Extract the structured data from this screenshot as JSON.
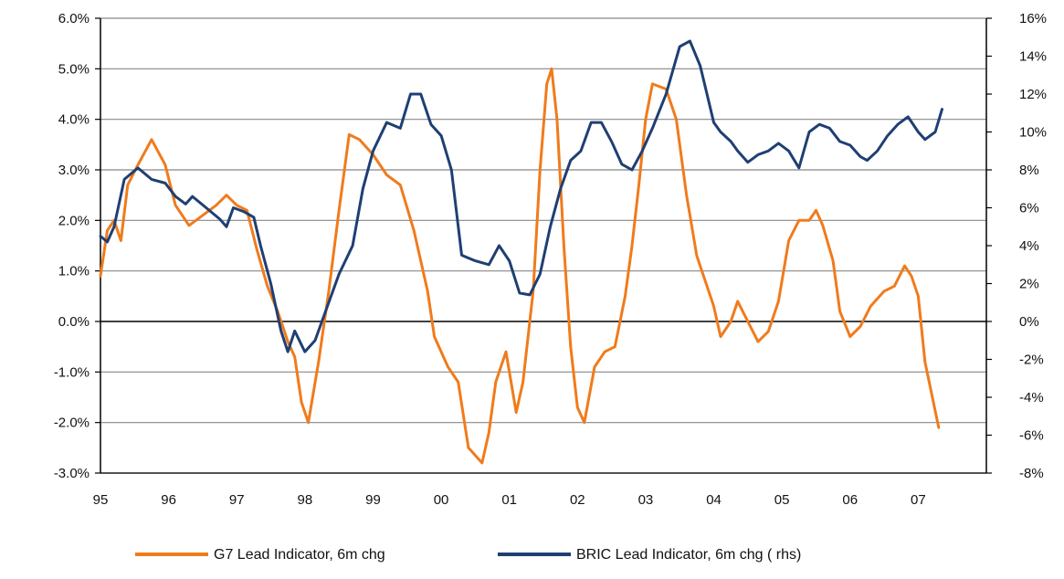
{
  "chart_data": {
    "type": "line",
    "title": "",
    "xlabel": "",
    "ylabel": "",
    "x_tick_labels": [
      "95",
      "96",
      "97",
      "98",
      "99",
      "00",
      "01",
      "02",
      "03",
      "04",
      "05",
      "06",
      "07"
    ],
    "x_tick_values": [
      1995,
      1996,
      1997,
      1998,
      1999,
      2000,
      2001,
      2002,
      2003,
      2004,
      2005,
      2006,
      2007
    ],
    "xlim": [
      1995,
      2008
    ],
    "y_left": {
      "range": [
        -3.0,
        6.0
      ],
      "ticks": [
        6.0,
        5.0,
        4.0,
        3.0,
        2.0,
        1.0,
        0.0,
        -1.0,
        -2.0,
        -3.0
      ],
      "tick_labels": [
        "6.0%",
        "5.0%",
        "4.0%",
        "3.0%",
        "2.0%",
        "1.0%",
        "0.0%",
        "-1.0%",
        "-2.0%",
        "-3.0%"
      ]
    },
    "y_right": {
      "range": [
        -8,
        16
      ],
      "ticks": [
        16,
        14,
        12,
        10,
        8,
        6,
        4,
        2,
        0,
        -2,
        -4,
        -6,
        -8
      ],
      "tick_labels": [
        "16%",
        "14%",
        "12%",
        "10%",
        "8%",
        "6%",
        "4%",
        "2%",
        "0%",
        "-2%",
        "-4%",
        "-6%",
        "-8%"
      ]
    },
    "grid": "horizontal",
    "legend_position": "bottom",
    "colors": {
      "g7": "#f07b1c",
      "bric": "#1f3f73",
      "grid": "#888888",
      "axis": "#000000"
    },
    "series": [
      {
        "name": "G7 Lead Indicator, 6m chg",
        "axis": "left",
        "color": "#f07b1c",
        "points": [
          [
            1995.0,
            0.9
          ],
          [
            1995.1,
            1.8
          ],
          [
            1995.2,
            2.0
          ],
          [
            1995.3,
            1.6
          ],
          [
            1995.4,
            2.7
          ],
          [
            1995.55,
            3.1
          ],
          [
            1995.75,
            3.6
          ],
          [
            1995.95,
            3.1
          ],
          [
            1996.1,
            2.3
          ],
          [
            1996.3,
            1.9
          ],
          [
            1996.5,
            2.1
          ],
          [
            1996.7,
            2.3
          ],
          [
            1996.85,
            2.5
          ],
          [
            1997.0,
            2.3
          ],
          [
            1997.15,
            2.2
          ],
          [
            1997.3,
            1.4
          ],
          [
            1997.45,
            0.7
          ],
          [
            1997.6,
            0.2
          ],
          [
            1997.75,
            -0.4
          ],
          [
            1997.85,
            -0.7
          ],
          [
            1997.95,
            -1.6
          ],
          [
            1998.05,
            -2.0
          ],
          [
            1998.2,
            -0.8
          ],
          [
            1998.35,
            0.6
          ],
          [
            1998.5,
            2.2
          ],
          [
            1998.65,
            3.7
          ],
          [
            1998.8,
            3.6
          ],
          [
            1999.0,
            3.3
          ],
          [
            1999.2,
            2.9
          ],
          [
            1999.4,
            2.7
          ],
          [
            1999.6,
            1.8
          ],
          [
            1999.8,
            0.6
          ],
          [
            1999.9,
            -0.3
          ],
          [
            2000.1,
            -0.9
          ],
          [
            2000.25,
            -1.2
          ],
          [
            2000.4,
            -2.5
          ],
          [
            2000.6,
            -2.8
          ],
          [
            2000.7,
            -2.2
          ],
          [
            2000.8,
            -1.2
          ],
          [
            2000.95,
            -0.6
          ],
          [
            2001.1,
            -1.8
          ],
          [
            2001.2,
            -1.2
          ],
          [
            2001.35,
            0.6
          ],
          [
            2001.45,
            3.0
          ],
          [
            2001.55,
            4.7
          ],
          [
            2001.62,
            5.0
          ],
          [
            2001.7,
            4.0
          ],
          [
            2001.8,
            1.5
          ],
          [
            2001.9,
            -0.5
          ],
          [
            2002.0,
            -1.7
          ],
          [
            2002.1,
            -2.0
          ],
          [
            2002.25,
            -0.9
          ],
          [
            2002.4,
            -0.6
          ],
          [
            2002.55,
            -0.5
          ],
          [
            2002.7,
            0.5
          ],
          [
            2002.8,
            1.5
          ],
          [
            2002.9,
            2.7
          ],
          [
            2003.0,
            4.0
          ],
          [
            2003.1,
            4.7
          ],
          [
            2003.3,
            4.6
          ],
          [
            2003.45,
            4.0
          ],
          [
            2003.6,
            2.5
          ],
          [
            2003.75,
            1.3
          ],
          [
            2003.9,
            0.7
          ],
          [
            2004.0,
            0.3
          ],
          [
            2004.1,
            -0.3
          ],
          [
            2004.25,
            0.0
          ],
          [
            2004.35,
            0.4
          ],
          [
            2004.5,
            0.0
          ],
          [
            2004.65,
            -0.4
          ],
          [
            2004.8,
            -0.2
          ],
          [
            2004.95,
            0.4
          ],
          [
            2005.1,
            1.6
          ],
          [
            2005.25,
            2.0
          ],
          [
            2005.4,
            2.0
          ],
          [
            2005.5,
            2.2
          ],
          [
            2005.6,
            1.9
          ],
          [
            2005.75,
            1.2
          ],
          [
            2005.85,
            0.2
          ],
          [
            2006.0,
            -0.3
          ],
          [
            2006.15,
            -0.1
          ],
          [
            2006.3,
            0.3
          ],
          [
            2006.5,
            0.6
          ],
          [
            2006.65,
            0.7
          ],
          [
            2006.8,
            1.1
          ],
          [
            2006.9,
            0.9
          ],
          [
            2007.0,
            0.5
          ],
          [
            2007.1,
            -0.8
          ],
          [
            2007.3,
            -2.1
          ]
        ]
      },
      {
        "name": "BRIC Lead Indicator, 6m chg ( rhs)",
        "axis": "right",
        "color": "#1f3f73",
        "points": [
          [
            1995.0,
            4.5
          ],
          [
            1995.1,
            4.2
          ],
          [
            1995.2,
            5.0
          ],
          [
            1995.35,
            7.5
          ],
          [
            1995.55,
            8.1
          ],
          [
            1995.75,
            7.5
          ],
          [
            1995.95,
            7.3
          ],
          [
            1996.1,
            6.6
          ],
          [
            1996.25,
            6.2
          ],
          [
            1996.35,
            6.6
          ],
          [
            1996.55,
            6.0
          ],
          [
            1996.75,
            5.4
          ],
          [
            1996.85,
            5.0
          ],
          [
            1996.95,
            6.0
          ],
          [
            1997.1,
            5.8
          ],
          [
            1997.25,
            5.5
          ],
          [
            1997.35,
            4.0
          ],
          [
            1997.5,
            2.0
          ],
          [
            1997.65,
            -0.5
          ],
          [
            1997.75,
            -1.6
          ],
          [
            1997.85,
            -0.5
          ],
          [
            1998.0,
            -1.6
          ],
          [
            1998.15,
            -1.0
          ],
          [
            1998.3,
            0.5
          ],
          [
            1998.5,
            2.5
          ],
          [
            1998.7,
            4.0
          ],
          [
            1998.85,
            7.0
          ],
          [
            1999.0,
            9.0
          ],
          [
            1999.2,
            10.5
          ],
          [
            1999.4,
            10.2
          ],
          [
            1999.55,
            12.0
          ],
          [
            1999.7,
            12.0
          ],
          [
            1999.85,
            10.4
          ],
          [
            2000.0,
            9.8
          ],
          [
            2000.15,
            8.0
          ],
          [
            2000.3,
            3.5
          ],
          [
            2000.5,
            3.2
          ],
          [
            2000.7,
            3.0
          ],
          [
            2000.85,
            4.0
          ],
          [
            2001.0,
            3.2
          ],
          [
            2001.15,
            1.5
          ],
          [
            2001.3,
            1.4
          ],
          [
            2001.45,
            2.5
          ],
          [
            2001.6,
            5.0
          ],
          [
            2001.75,
            7.0
          ],
          [
            2001.9,
            8.5
          ],
          [
            2002.05,
            9.0
          ],
          [
            2002.2,
            10.5
          ],
          [
            2002.35,
            10.5
          ],
          [
            2002.5,
            9.5
          ],
          [
            2002.65,
            8.3
          ],
          [
            2002.8,
            8.0
          ],
          [
            2002.95,
            9.0
          ],
          [
            2003.1,
            10.2
          ],
          [
            2003.3,
            12.0
          ],
          [
            2003.5,
            14.5
          ],
          [
            2003.65,
            14.8
          ],
          [
            2003.8,
            13.5
          ],
          [
            2003.9,
            12.0
          ],
          [
            2004.0,
            10.5
          ],
          [
            2004.1,
            10.0
          ],
          [
            2004.25,
            9.5
          ],
          [
            2004.35,
            9.0
          ],
          [
            2004.5,
            8.4
          ],
          [
            2004.65,
            8.8
          ],
          [
            2004.8,
            9.0
          ],
          [
            2004.95,
            9.4
          ],
          [
            2005.1,
            9.0
          ],
          [
            2005.25,
            8.1
          ],
          [
            2005.4,
            10.0
          ],
          [
            2005.55,
            10.4
          ],
          [
            2005.7,
            10.2
          ],
          [
            2005.85,
            9.5
          ],
          [
            2006.0,
            9.3
          ],
          [
            2006.15,
            8.7
          ],
          [
            2006.25,
            8.5
          ],
          [
            2006.4,
            9.0
          ],
          [
            2006.55,
            9.8
          ],
          [
            2006.7,
            10.4
          ],
          [
            2006.85,
            10.8
          ],
          [
            2007.0,
            10.0
          ],
          [
            2007.1,
            9.6
          ],
          [
            2007.25,
            10.0
          ],
          [
            2007.35,
            11.2
          ]
        ]
      }
    ]
  }
}
